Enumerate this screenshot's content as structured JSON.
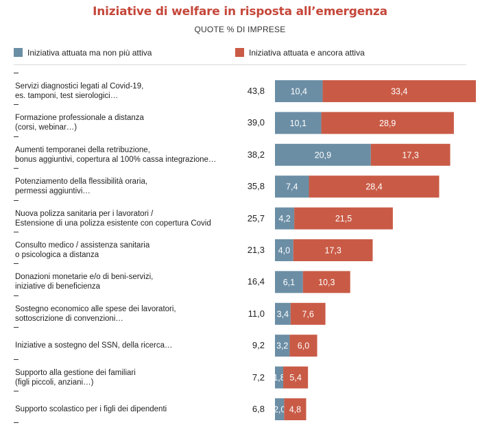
{
  "title": "Iniziative di welfare in risposta all’emergenza",
  "subtitle": "QUOTE % DI IMPRESE",
  "legend": {
    "former": "Iniziativa attuata ma non più attiva",
    "active": "Iniziativa attuata e ancora attiva"
  },
  "colors": {
    "former": "#6b8ea5",
    "active": "#c95b46"
  },
  "chart_data": {
    "type": "bar",
    "orientation": "horizontal",
    "stacked": true,
    "categories": [
      "Servizi diagnostici legati al Covid-19,\nes. tamponi, test sierologici…",
      "Formazione professionale a distanza\n(corsi, webinar…)",
      "Aumenti temporanei della retribuzione,\nbonus aggiuntivi, copertura al 100% cassa integrazione…",
      "Potenziamento della flessibilità oraria,\npermessi aggiuntivi…",
      "Nuova polizza sanitaria per i lavoratori /\nEstensione di una polizza esistente con copertura Covid",
      "Consulto medico / assistenza sanitaria\no psicologica a distanza",
      "Donazioni monetarie e/o di beni-servizi,\niniziative di beneficienza",
      "Sostegno economico alle spese dei lavoratori,\nsottoscrizione di convenzioni…",
      "Iniziative a sostegno del SSN, della ricerca…",
      "Supporto alla gestione dei familiari\n(figli piccoli, anziani…)",
      "Supporto scolastico per i figli dei dipendenti"
    ],
    "totals": [
      "43,8",
      "39,0",
      "38,2",
      "35,8",
      "25,7",
      "21,3",
      "16,4",
      "11,0",
      "9,2",
      "7,2",
      "6,8"
    ],
    "series": [
      {
        "name": "Iniziativa attuata ma non più attiva",
        "values": [
          10.4,
          10.1,
          20.9,
          7.4,
          4.2,
          4.0,
          6.1,
          3.4,
          3.2,
          1.8,
          2.0
        ],
        "labels": [
          "10,4",
          "10,1",
          "20,9",
          "7,4",
          "4,2",
          "4,0",
          "6,1",
          "3,4",
          "3,2",
          "1,8",
          "2,0"
        ]
      },
      {
        "name": "Iniziativa attuata e ancora attiva",
        "values": [
          33.4,
          28.9,
          17.3,
          28.4,
          21.5,
          17.3,
          10.3,
          7.6,
          6.0,
          5.4,
          4.8
        ],
        "labels": [
          "33,4",
          "28,9",
          "17,3",
          "28,4",
          "21,5",
          "17,3",
          "10,3",
          "7,6",
          "6,0",
          "5,4",
          "4,8"
        ]
      }
    ],
    "xlim": [
      0,
      43.8
    ]
  }
}
